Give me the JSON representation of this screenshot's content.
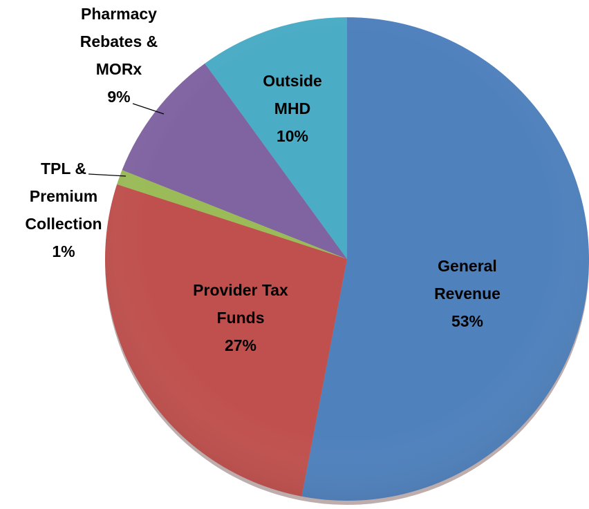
{
  "chart_data": {
    "type": "pie",
    "categories": [
      "General Revenue",
      "Provider Tax Funds",
      "TPL & Premium Collection",
      "Pharmacy Rebates & MORx",
      "Outside MHD"
    ],
    "values": [
      53,
      27,
      1,
      9,
      10
    ],
    "value_labels": [
      "53%",
      "27%",
      "1%",
      "9%",
      "10%"
    ],
    "colors": [
      "#4f81bd",
      "#c0504d",
      "#9bbb59",
      "#8064a2",
      "#4bacc6"
    ]
  }
}
